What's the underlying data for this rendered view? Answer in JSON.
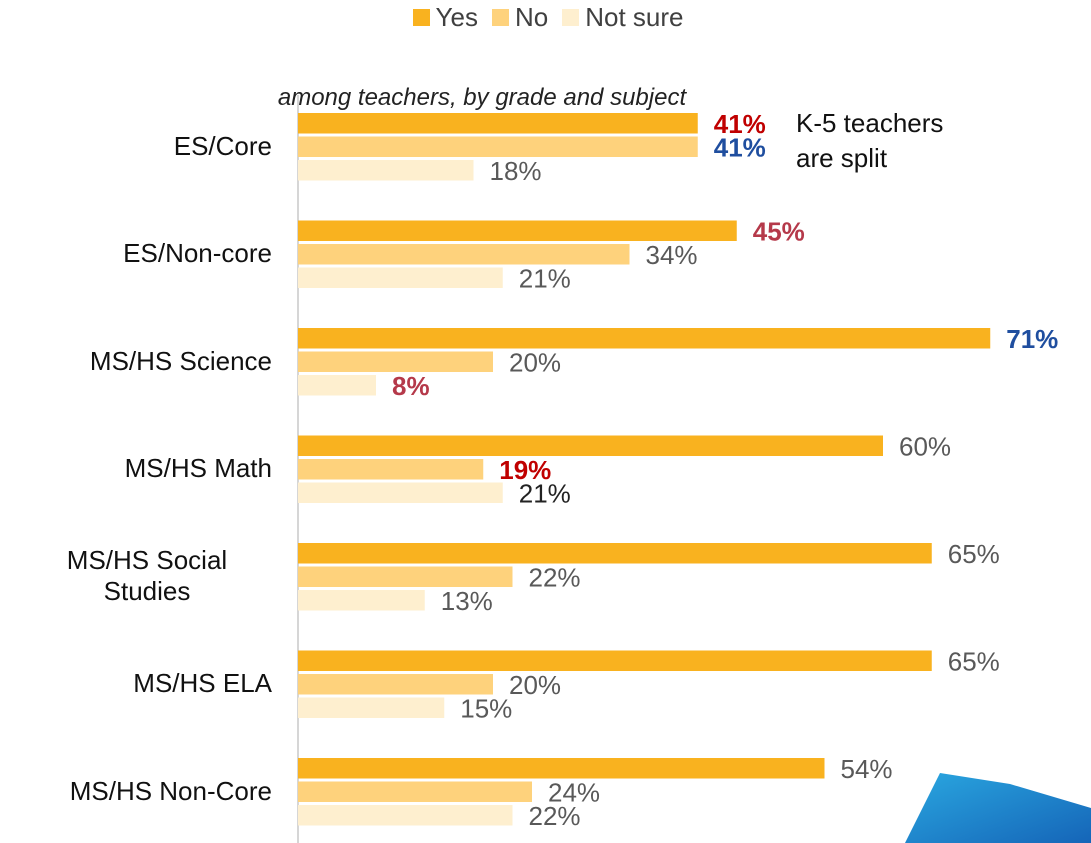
{
  "chart_data": {
    "type": "bar",
    "orientation": "horizontal",
    "subtitle": "among teachers, by grade and subject",
    "annotation": "K-5 teachers are split",
    "categories": [
      "ES/Core",
      "ES/Non-core",
      "MS/HS Science",
      "MS/HS Math",
      "MS/HS Social Studies",
      "MS/HS ELA",
      "MS/HS Non-Core"
    ],
    "series": [
      {
        "name": "Yes",
        "color": "#f9b21f",
        "values": [
          41,
          45,
          71,
          60,
          65,
          65,
          54
        ],
        "value_labels": [
          "41%",
          "45%",
          "71%",
          "60%",
          "65%",
          "65%",
          "54%"
        ],
        "label_colors": [
          "#c00000",
          "#b5394a",
          "#1f4e9f",
          "#595959",
          "#595959",
          "#595959",
          "#595959"
        ],
        "label_bold": [
          true,
          true,
          true,
          false,
          false,
          false,
          false
        ]
      },
      {
        "name": "No",
        "color": "#fed27c",
        "values": [
          41,
          34,
          20,
          19,
          22,
          20,
          24
        ],
        "value_labels": [
          "41%",
          "34%",
          "20%",
          "19%",
          "22%",
          "20%",
          "24%"
        ],
        "label_colors": [
          "#1f4e9f",
          "#595959",
          "#595959",
          "#c00000",
          "#595959",
          "#595959",
          "#595959"
        ],
        "label_bold": [
          true,
          false,
          false,
          true,
          false,
          false,
          false
        ]
      },
      {
        "name": "Not sure",
        "color": "#feefcf",
        "values": [
          18,
          21,
          8,
          21,
          13,
          15,
          22
        ],
        "value_labels": [
          "18%",
          "21%",
          "8%",
          "21%",
          "13%",
          "15%",
          "22%"
        ],
        "label_colors": [
          "#595959",
          "#595959",
          "#b5394a",
          "#222222",
          "#595959",
          "#595959",
          "#595959"
        ],
        "label_bold": [
          false,
          false,
          true,
          false,
          false,
          false,
          false
        ]
      }
    ]
  }
}
